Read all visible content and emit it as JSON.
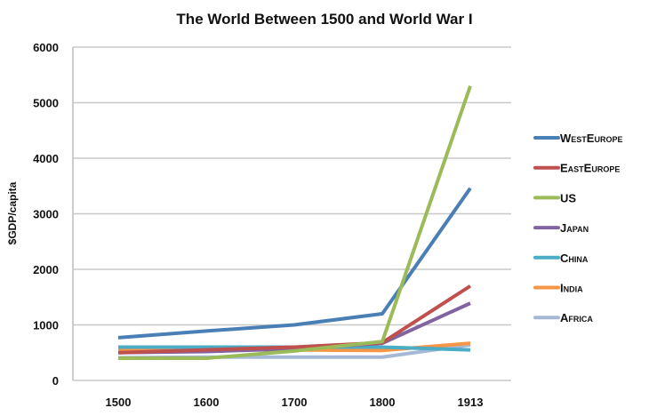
{
  "chart_data": {
    "type": "line",
    "title": "The World Between 1500 and World War I",
    "xlabel": "",
    "ylabel": "$GDP/capita",
    "categories": [
      "1500",
      "1600",
      "1700",
      "1800",
      "1913"
    ],
    "ylim": [
      0,
      6000
    ],
    "yticks": [
      "0",
      "1000",
      "2000",
      "3000",
      "4000",
      "5000",
      "6000"
    ],
    "grid": true,
    "legend_position": "right",
    "series": [
      {
        "name": "WestEurope",
        "color": "#4a7fb5",
        "values": [
          770,
          890,
          1000,
          1200,
          3460
        ]
      },
      {
        "name": "EastEurope",
        "color": "#c0504d",
        "values": [
          500,
          550,
          600,
          680,
          1700
        ]
      },
      {
        "name": "US",
        "color": "#9bbb59",
        "values": [
          400,
          400,
          530,
          700,
          5300
        ]
      },
      {
        "name": "Japan",
        "color": "#8064a2",
        "values": [
          500,
          520,
          570,
          670,
          1390
        ]
      },
      {
        "name": "China",
        "color": "#4bacc6",
        "values": [
          600,
          600,
          600,
          600,
          550
        ]
      },
      {
        "name": "India",
        "color": "#f79646",
        "values": [
          550,
          550,
          550,
          540,
          670
        ]
      },
      {
        "name": "Africa",
        "color": "#a5b9d6",
        "values": [
          410,
          420,
          420,
          420,
          640
        ]
      }
    ]
  }
}
